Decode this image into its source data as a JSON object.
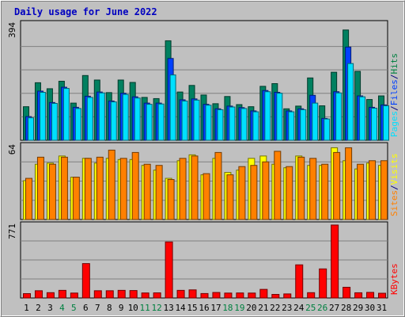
{
  "chart_data": {
    "type": "bar",
    "title": "Daily usage for June 2022",
    "categories": [
      "1",
      "2",
      "3",
      "4",
      "5",
      "6",
      "7",
      "8",
      "9",
      "10",
      "11",
      "12",
      "13",
      "14",
      "15",
      "16",
      "17",
      "18",
      "19",
      "20",
      "21",
      "22",
      "23",
      "24",
      "25",
      "26",
      "27",
      "28",
      "29",
      "30",
      "31"
    ],
    "weekend_categories": [
      "4",
      "5",
      "11",
      "12",
      "18",
      "19",
      "25",
      "26"
    ],
    "panels": [
      {
        "key": "hits_files_pages",
        "max_label": "394",
        "ymax": 394,
        "legend": [
          {
            "label": "Pages",
            "color": "#00e0ff"
          },
          {
            "label": "/",
            "color": "#000080"
          },
          {
            "label": "Files",
            "color": "#0040ff"
          },
          {
            "label": "/",
            "color": "#000080"
          },
          {
            "label": "Hits",
            "color": "#008040"
          }
        ],
        "series": [
          {
            "name": "Hits",
            "color": "#008060",
            "values": [
              112,
              192,
              172,
              197,
              124,
              216,
              201,
              159,
              201,
              193,
              143,
              139,
              332,
              161,
              183,
              151,
              122,
              146,
              119,
              112,
              180,
              189,
              105,
              114,
              208,
              115,
              227,
              368,
              230,
              136,
              148
            ]
          },
          {
            "name": "Files",
            "color": "#0040ff",
            "values": [
              79,
              164,
              126,
              177,
              110,
              147,
              161,
              131,
              157,
              145,
              124,
              124,
              273,
              135,
              138,
              120,
              105,
              114,
              109,
              98,
              166,
              160,
              98,
              105,
              150,
              73,
              162,
              311,
              148,
              110,
              118
            ]
          },
          {
            "name": "Pages",
            "color": "#00e0ff",
            "values": [
              75,
              160,
              123,
              173,
              106,
              143,
              158,
              128,
              153,
              141,
              120,
              121,
              218,
              131,
              134,
              117,
              102,
              111,
              106,
              95,
              162,
              157,
              95,
              102,
              124,
              71,
              158,
              256,
              145,
              107,
              115
            ]
          }
        ]
      },
      {
        "key": "visits_sites",
        "max_label": "64",
        "ymax": 64,
        "legend": [
          {
            "label": "Sites",
            "color": "#ff8000"
          },
          {
            "label": "/",
            "color": "#000080"
          },
          {
            "label": "Visits",
            "color": "#ffff00"
          }
        ],
        "series": [
          {
            "name": "Visits",
            "color": "#ffff00",
            "values": [
              33,
              47,
              48,
              54,
              36,
              52,
              48,
              52,
              51,
              51,
              46,
              42,
              35,
              50,
              55,
              38,
              52,
              40,
              42,
              52,
              54,
              47,
              44,
              54,
              46,
              46,
              61,
              50,
              43,
              48,
              46
            ]
          },
          {
            "name": "Sites",
            "color": "#ff8000",
            "values": [
              35,
              53,
              47,
              53,
              36,
              52,
              53,
              59,
              52,
              57,
              47,
              46,
              34,
              52,
              54,
              39,
              57,
              38,
              45,
              46,
              49,
              58,
              45,
              53,
              52,
              47,
              57,
              61,
              47,
              50,
              50
            ]
          }
        ]
      },
      {
        "key": "kbytes",
        "max_label": "771",
        "ymax": 771,
        "legend": [
          {
            "label": "KBytes",
            "color": "#ff0000"
          }
        ],
        "series": [
          {
            "name": "KBytes",
            "color": "#ff0000",
            "values": [
              45,
              75,
              55,
              79,
              51,
              356,
              75,
              75,
              79,
              77,
              52,
              53,
              580,
              79,
              84,
              46,
              57,
              51,
              52,
              51,
              89,
              37,
              42,
              343,
              55,
              301,
              755,
              111,
              54,
              58,
              49
            ]
          }
        ]
      }
    ]
  }
}
